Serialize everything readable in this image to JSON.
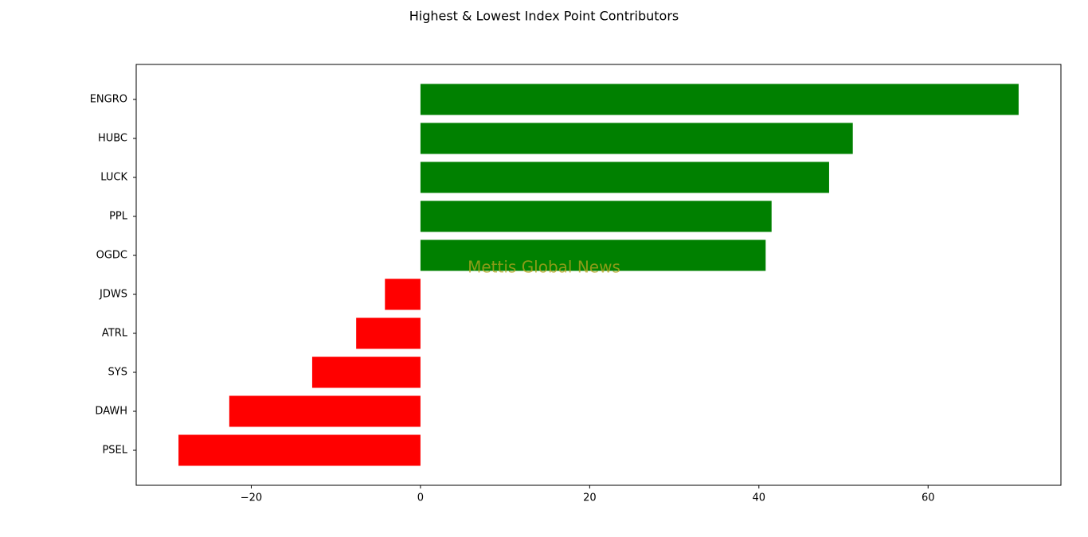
{
  "chart_data": {
    "type": "barh",
    "title": "Highest & Lowest Index Point Contributors",
    "watermark": "Mettis Global News",
    "categories": [
      "ENGRO",
      "HUBC",
      "LUCK",
      "PPL",
      "OGDC",
      "JDWS",
      "ATRL",
      "SYS",
      "DAWH",
      "PSEL"
    ],
    "values": [
      70.7,
      51.1,
      48.3,
      41.5,
      40.8,
      -4.2,
      -7.6,
      -12.8,
      -22.6,
      -28.6
    ],
    "colors": [
      "#008000",
      "#008000",
      "#008000",
      "#008000",
      "#008000",
      "#ff0000",
      "#ff0000",
      "#ff0000",
      "#ff0000",
      "#ff0000"
    ],
    "xlim": [
      -33.6,
      75.7
    ],
    "xticks": [
      {
        "value": -20,
        "label": "−20"
      },
      0,
      20,
      40,
      60
    ]
  }
}
